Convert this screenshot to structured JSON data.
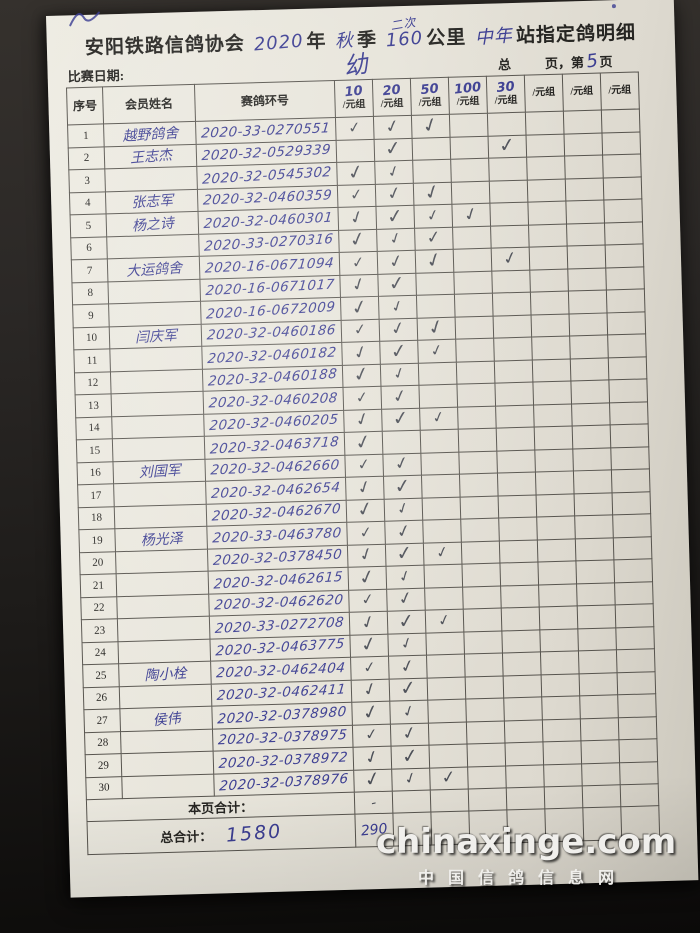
{
  "colors": {
    "paper": "#e7e4da",
    "background_top": "#302c29",
    "background_bottom": "#0b0a09",
    "ink_blue": "#3c3e92",
    "check_ink": "#4c4f57",
    "grid_line": "#57544e",
    "printed_text": "#262522",
    "watermark_text": "#f0efec"
  },
  "glyphs": {
    "check_icon": "✓"
  },
  "header": {
    "title_prefix": "安阳铁路信鸽协会",
    "year_fill": "2020",
    "year_label": "年",
    "season_fill": "秋",
    "season_label": "季",
    "note_above_distance": "二次",
    "distance_fill": "160",
    "distance_label": "公里",
    "group_fill": "中年",
    "title_suffix": "站指定鸽明细",
    "race_date_label": "比赛日期:",
    "young_mark": "幼",
    "pages_total_label": "总",
    "pages_mid_label": "页，第",
    "page_number": "5",
    "pages_suffix_label": "页"
  },
  "table": {
    "col_headers": {
      "index": "序号",
      "name": "会员姓名",
      "ring": "赛鸽环号",
      "fee_unit": "/元组",
      "fee_amounts": [
        "10",
        "20",
        "50",
        "100",
        "30",
        "",
        "",
        ""
      ]
    },
    "rows": [
      {
        "no": "1",
        "name": "越野鸽舍",
        "ring": "2020-33-0270551",
        "checks": [
          1,
          1,
          1,
          0,
          0,
          0,
          0,
          0
        ]
      },
      {
        "no": "2",
        "name": "王志杰",
        "ring": "2020-32-0529339",
        "checks": [
          0,
          1,
          0,
          0,
          1,
          0,
          0,
          0
        ]
      },
      {
        "no": "3",
        "name": "",
        "ring": "2020-32-0545302",
        "checks": [
          1,
          1,
          0,
          0,
          0,
          0,
          0,
          0
        ]
      },
      {
        "no": "4",
        "name": "张志军",
        "ring": "2020-32-0460359",
        "checks": [
          1,
          1,
          1,
          0,
          0,
          0,
          0,
          0
        ]
      },
      {
        "no": "5",
        "name": "杨之诗",
        "ring": "2020-32-0460301",
        "checks": [
          1,
          1,
          1,
          1,
          0,
          0,
          0,
          0
        ]
      },
      {
        "no": "6",
        "name": "",
        "ring": "2020-33-0270316",
        "checks": [
          1,
          1,
          1,
          0,
          0,
          0,
          0,
          0
        ]
      },
      {
        "no": "7",
        "name": "大运鸽舍",
        "ring": "2020-16-0671094",
        "checks": [
          1,
          1,
          1,
          0,
          1,
          0,
          0,
          0
        ]
      },
      {
        "no": "8",
        "name": "",
        "ring": "2020-16-0671017",
        "checks": [
          1,
          1,
          0,
          0,
          0,
          0,
          0,
          0
        ]
      },
      {
        "no": "9",
        "name": "",
        "ring": "2020-16-0672009",
        "checks": [
          1,
          1,
          0,
          0,
          0,
          0,
          0,
          0
        ]
      },
      {
        "no": "10",
        "name": "闫庆军",
        "ring": "2020-32-0460186",
        "checks": [
          1,
          1,
          1,
          0,
          0,
          0,
          0,
          0
        ]
      },
      {
        "no": "11",
        "name": "",
        "ring": "2020-32-0460182",
        "checks": [
          1,
          1,
          1,
          0,
          0,
          0,
          0,
          0
        ]
      },
      {
        "no": "12",
        "name": "",
        "ring": "2020-32-0460188",
        "checks": [
          1,
          1,
          0,
          0,
          0,
          0,
          0,
          0
        ]
      },
      {
        "no": "13",
        "name": "",
        "ring": "2020-32-0460208",
        "checks": [
          1,
          1,
          0,
          0,
          0,
          0,
          0,
          0
        ]
      },
      {
        "no": "14",
        "name": "",
        "ring": "2020-32-0460205",
        "checks": [
          1,
          1,
          1,
          0,
          0,
          0,
          0,
          0
        ]
      },
      {
        "no": "15",
        "name": "",
        "ring": "2020-32-0463718",
        "checks": [
          1,
          0,
          0,
          0,
          0,
          0,
          0,
          0
        ]
      },
      {
        "no": "16",
        "name": "刘国军",
        "ring": "2020-32-0462660",
        "checks": [
          1,
          1,
          0,
          0,
          0,
          0,
          0,
          0
        ]
      },
      {
        "no": "17",
        "name": "",
        "ring": "2020-32-0462654",
        "checks": [
          1,
          1,
          0,
          0,
          0,
          0,
          0,
          0
        ]
      },
      {
        "no": "18",
        "name": "",
        "ring": "2020-32-0462670",
        "checks": [
          1,
          1,
          0,
          0,
          0,
          0,
          0,
          0
        ]
      },
      {
        "no": "19",
        "name": "杨光泽",
        "ring": "2020-33-0463780",
        "checks": [
          1,
          1,
          0,
          0,
          0,
          0,
          0,
          0
        ]
      },
      {
        "no": "20",
        "name": "",
        "ring": "2020-32-0378450",
        "checks": [
          1,
          1,
          1,
          0,
          0,
          0,
          0,
          0
        ]
      },
      {
        "no": "21",
        "name": "",
        "ring": "2020-32-0462615",
        "checks": [
          1,
          1,
          0,
          0,
          0,
          0,
          0,
          0
        ]
      },
      {
        "no": "22",
        "name": "",
        "ring": "2020-32-0462620",
        "checks": [
          1,
          1,
          0,
          0,
          0,
          0,
          0,
          0
        ]
      },
      {
        "no": "23",
        "name": "",
        "ring": "2020-33-0272708",
        "checks": [
          1,
          1,
          1,
          0,
          0,
          0,
          0,
          0
        ]
      },
      {
        "no": "24",
        "name": "",
        "ring": "2020-32-0463775",
        "checks": [
          1,
          1,
          0,
          0,
          0,
          0,
          0,
          0
        ]
      },
      {
        "no": "25",
        "name": "陶小栓",
        "ring": "2020-32-0462404",
        "checks": [
          1,
          1,
          0,
          0,
          0,
          0,
          0,
          0
        ]
      },
      {
        "no": "26",
        "name": "",
        "ring": "2020-32-0462411",
        "checks": [
          1,
          1,
          0,
          0,
          0,
          0,
          0,
          0
        ]
      },
      {
        "no": "27",
        "name": "侯伟",
        "ring": "2020-32-0378980",
        "checks": [
          1,
          1,
          0,
          0,
          0,
          0,
          0,
          0
        ]
      },
      {
        "no": "28",
        "name": "",
        "ring": "2020-32-0378975",
        "checks": [
          1,
          1,
          0,
          0,
          0,
          0,
          0,
          0
        ]
      },
      {
        "no": "29",
        "name": "",
        "ring": "2020-32-0378972",
        "checks": [
          1,
          1,
          0,
          0,
          0,
          0,
          0,
          0
        ]
      },
      {
        "no": "30",
        "name": "",
        "ring": "2020-32-0378976",
        "checks": [
          1,
          1,
          1,
          0,
          0,
          0,
          0,
          0
        ]
      }
    ],
    "footer": {
      "page_total_label": "本页合计：",
      "page_total_mark": "-",
      "grand_total_label": "总合计：",
      "grand_total_value": "1580",
      "grand_total_col1": "290"
    }
  },
  "watermark": {
    "line1": "chinaxinge.com",
    "line2": "中国信鸽信息网"
  }
}
